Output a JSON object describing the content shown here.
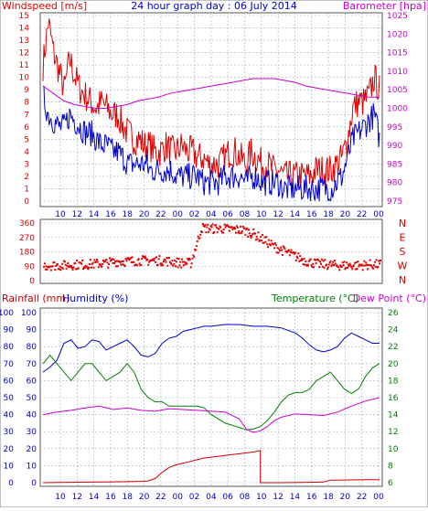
{
  "title": "24 hour graph day : 06 July 2014",
  "colors": {
    "red": "#e00000",
    "blue": "#0000cc",
    "magenta": "#cc00cc",
    "green": "#008000",
    "darkred": "#cc0000",
    "grid": "#9ab0c8",
    "frame": "#555555"
  },
  "x_ticks": [
    "10",
    "12",
    "14",
    "16",
    "18",
    "20",
    "22",
    "00",
    "02",
    "04",
    "06",
    "08",
    "10",
    "12",
    "14",
    "16",
    "18",
    "20",
    "22",
    "00"
  ],
  "chart_data": [
    {
      "type": "line",
      "name_left": "Windspeed [m/s]",
      "name_right": "Barometer [hpa]",
      "left_ticks": [
        "0",
        "1",
        "2",
        "3",
        "4",
        "5",
        "6",
        "7",
        "8",
        "9",
        "10",
        "11",
        "12",
        "13",
        "14",
        "15"
      ],
      "right_ticks": [
        "975",
        "980",
        "985",
        "990",
        "995",
        "1000",
        "1005",
        "1010",
        "1015",
        "1020",
        "1025"
      ],
      "ylim_left": [
        0,
        15.5
      ],
      "ylim_right": [
        973,
        1026
      ],
      "series": [
        {
          "name": "Gust",
          "axis": "left",
          "color": "#e00000",
          "values": [
            11,
            14.5,
            12,
            10.5,
            9,
            11.5,
            10,
            9,
            8.5,
            8,
            7.5,
            8,
            7.5,
            7,
            7,
            6,
            5.5,
            5,
            5,
            4.5,
            4.5,
            4,
            4,
            4.5,
            4,
            4,
            4.5,
            4,
            4,
            3.5,
            3.5,
            3,
            3,
            3,
            3.5,
            4,
            4,
            3.5,
            3,
            4,
            3.5,
            3,
            3,
            2.5,
            2.5,
            2,
            2,
            2,
            2,
            2,
            2,
            2.5,
            2.5,
            2.5,
            2.5,
            3,
            3.5,
            5,
            7.5,
            8,
            8,
            8.5,
            10,
            9
          ]
        },
        {
          "name": "Average",
          "axis": "left",
          "color": "#0000cc",
          "values": [
            8.5,
            7,
            6.5,
            6,
            6,
            7,
            6.5,
            6,
            5.5,
            5.5,
            5,
            4.5,
            4.5,
            4,
            4,
            3.5,
            3,
            3,
            3,
            3,
            2.5,
            2.5,
            2.5,
            2.5,
            2.5,
            2,
            2,
            2,
            2,
            2,
            1.5,
            1.5,
            1.5,
            1.5,
            2,
            2,
            2,
            2,
            1.5,
            2,
            2,
            1.5,
            1.5,
            1.5,
            1.5,
            1,
            1,
            1,
            1,
            1,
            1,
            1,
            1,
            1,
            1,
            1.5,
            2,
            3.5,
            5,
            5.5,
            6,
            6.5,
            7,
            5
          ]
        },
        {
          "name": "Pressure",
          "axis": "right",
          "color": "#cc00cc",
          "values": [
            1006,
            1004,
            1002,
            1001,
            1000.5,
            1000,
            1000,
            1000.5,
            1001,
            1002,
            1002.5,
            1003,
            1004,
            1004.5,
            1005,
            1005.5,
            1006,
            1006.5,
            1007,
            1007.5,
            1008,
            1008,
            1008,
            1007.5,
            1007,
            1006,
            1005.5,
            1005,
            1004.5,
            1004,
            1003.5,
            1003,
            1003
          ]
        }
      ]
    },
    {
      "type": "scatter",
      "name": "Wind direction",
      "left_ticks": [
        "0",
        "90",
        "180",
        "270",
        "360"
      ],
      "right_ticks": [
        "N",
        "E",
        "S",
        "W",
        "N"
      ],
      "ylim": [
        0,
        360
      ],
      "x_range_hours": [
        9,
        33
      ],
      "trend": [
        95,
        95,
        95,
        100,
        100,
        105,
        110,
        120,
        120,
        125,
        125,
        125,
        120,
        110,
        110,
        330,
        325,
        325,
        320,
        315,
        290,
        250,
        210,
        180,
        150,
        120,
        105,
        100,
        95,
        95,
        95,
        100,
        100
      ],
      "color": "#e00000"
    },
    {
      "type": "line",
      "label_rain": "Rainfall (mm)",
      "label_humidity": "Humidity (%)",
      "label_temperature": "Temperature (°C)",
      "label_dewpoint": "Dew Point (°C)",
      "ticks_rain": [
        "0",
        "10",
        "20",
        "30",
        "40",
        "50",
        "60",
        "70",
        "80",
        "90",
        "100"
      ],
      "ticks_humidity": [
        "0",
        "10",
        "20",
        "30",
        "40",
        "50",
        "60",
        "70",
        "80",
        "90",
        "100"
      ],
      "ticks_temp": [
        "6",
        "8",
        "10",
        "12",
        "14",
        "16",
        "18",
        "20",
        "22",
        "24",
        "26"
      ],
      "ylim_rain": [
        0,
        100
      ],
      "ylim_temp": [
        6,
        26
      ],
      "x_range_hours": [
        9,
        33
      ],
      "series": [
        {
          "name": "Humidity",
          "axis": "rain",
          "color": "#0000cc",
          "x": [
            9,
            9.5,
            10,
            10.5,
            11,
            11.5,
            12,
            12.5,
            13,
            13.5,
            14,
            14.5,
            15,
            15.5,
            16,
            16.5,
            17,
            17.5,
            18,
            18.5,
            19,
            19.5,
            20,
            20.5,
            21,
            22,
            23,
            24,
            25,
            26,
            27,
            27.5,
            28,
            28.5,
            29,
            29.5,
            30,
            30.5,
            31,
            31.5,
            32,
            32.5,
            33
          ],
          "y": [
            65,
            68,
            72,
            82,
            84,
            79,
            80,
            84,
            83,
            78,
            80,
            82,
            84,
            80,
            75,
            74,
            76,
            82,
            85,
            86,
            89,
            90,
            91,
            92,
            92,
            93,
            93,
            92,
            92,
            91,
            88,
            85,
            81,
            78,
            77,
            78,
            80,
            85,
            88,
            86,
            84,
            82,
            82
          ]
        },
        {
          "name": "Temperature",
          "axis": "temp",
          "color": "#008000",
          "x": [
            9,
            9.5,
            10,
            10.5,
            11,
            11.5,
            12,
            12.5,
            13,
            13.5,
            14,
            14.5,
            15,
            15.5,
            16,
            16.5,
            17,
            17.5,
            18,
            18.5,
            19,
            19.5,
            20,
            20.5,
            21,
            22,
            23,
            23.5,
            24,
            24.5,
            25,
            25.5,
            26,
            26.5,
            27,
            27.5,
            28,
            28.5,
            29,
            29.5,
            30,
            30.5,
            31,
            31.5,
            32,
            32.5,
            33
          ],
          "y": [
            20,
            21,
            20,
            19,
            18,
            19,
            20,
            20,
            19,
            18,
            18.5,
            19,
            20,
            19,
            17,
            16,
            15.5,
            15.5,
            15,
            15,
            15,
            15,
            15,
            14.8,
            14,
            13,
            12.5,
            12.2,
            12.3,
            12.6,
            13.3,
            14.3,
            15.5,
            16.3,
            16.6,
            16.6,
            17,
            18,
            18.5,
            19,
            18,
            17,
            16.5,
            17,
            18.5,
            19.5,
            20
          ]
        },
        {
          "name": "Dew Point",
          "axis": "temp",
          "color": "#cc00cc",
          "x": [
            9,
            10,
            11,
            12,
            13,
            14,
            15,
            16,
            17,
            18,
            19,
            20,
            21,
            22,
            23,
            23.5,
            24,
            24.5,
            25,
            25.5,
            26,
            27,
            28,
            29,
            30,
            31,
            32,
            33
          ],
          "y": [
            14,
            14.3,
            14.5,
            14.8,
            15,
            14.6,
            14.8,
            14.5,
            14.4,
            14.7,
            14.6,
            14.5,
            14.4,
            14.3,
            13.5,
            12.3,
            11.9,
            12.1,
            12.6,
            13.3,
            13.7,
            14.1,
            14,
            13.9,
            14.3,
            15,
            15.6,
            16
          ]
        },
        {
          "name": "Rainfall",
          "axis": "rain",
          "color": "#cc0000",
          "x": [
            9,
            10,
            11,
            12,
            13,
            14,
            15,
            16,
            16.5,
            17,
            17.5,
            18,
            18.5,
            19,
            19.5,
            20,
            20.5,
            21,
            22,
            23,
            24,
            24.5,
            24.5,
            26,
            28,
            29,
            29.5,
            30,
            31,
            32,
            33
          ],
          "y": [
            0,
            0.1,
            0.2,
            0.3,
            0.4,
            0.5,
            0.6,
            0.8,
            1,
            2.5,
            6,
            9,
            10.5,
            11.5,
            12.5,
            13.5,
            14.5,
            15,
            16,
            17,
            18,
            19,
            0,
            0,
            0.2,
            0.4,
            1.5,
            1.5,
            1.6,
            1.7,
            1.8
          ]
        }
      ]
    }
  ]
}
